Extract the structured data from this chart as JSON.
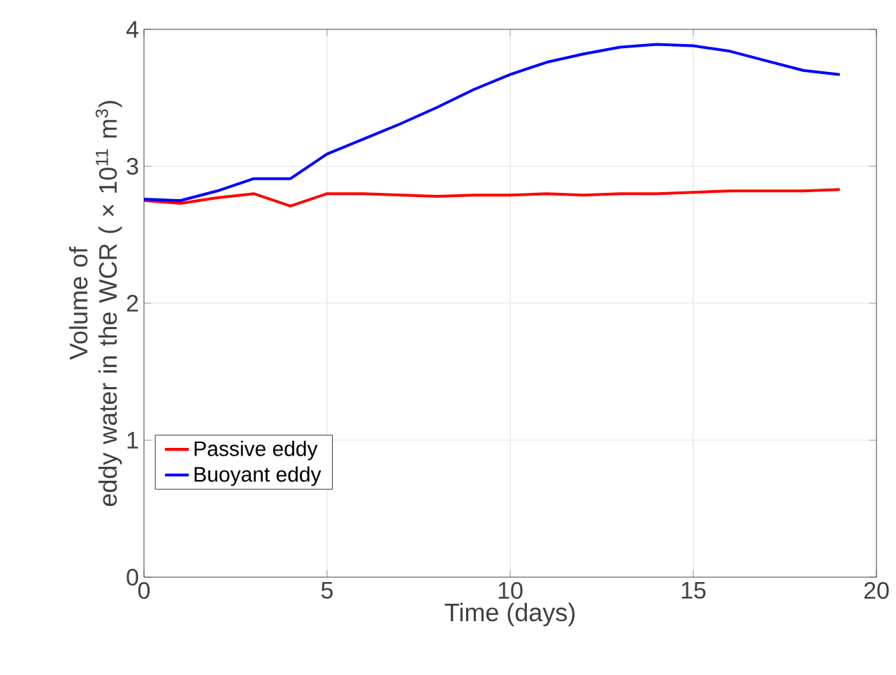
{
  "chart_data": {
    "type": "line",
    "xlabel": "Time (days)",
    "ylabel": "Volume of eddy water in the WCR ( × 10$^{11}$ m$^{3}$)",
    "x": [
      0,
      1,
      2,
      3,
      4,
      5,
      6,
      7,
      8,
      9,
      10,
      11,
      12,
      13,
      14,
      15,
      16,
      17,
      18,
      19
    ],
    "series": [
      {
        "name": "Passive eddy",
        "color": "#ff0000",
        "values": [
          2.75,
          2.73,
          2.77,
          2.8,
          2.71,
          2.8,
          2.8,
          2.79,
          2.78,
          2.79,
          2.79,
          2.8,
          2.79,
          2.8,
          2.8,
          2.81,
          2.82,
          2.82,
          2.82,
          2.83
        ]
      },
      {
        "name": "Buoyant eddy",
        "color": "#0000ff",
        "values": [
          2.76,
          2.75,
          2.82,
          2.91,
          2.91,
          3.09,
          3.2,
          3.31,
          3.43,
          3.56,
          3.67,
          3.76,
          3.82,
          3.87,
          3.89,
          3.88,
          3.84,
          3.77,
          3.7,
          3.67
        ]
      }
    ],
    "xlim": [
      0,
      20
    ],
    "xticks": [
      0,
      5,
      10,
      15,
      20
    ],
    "ylim": [
      0,
      4
    ],
    "yticks": [
      0,
      1,
      2,
      3,
      4
    ],
    "grid": true,
    "legend": "bottom left",
    "line_style": "solid",
    "marker": "none"
  }
}
